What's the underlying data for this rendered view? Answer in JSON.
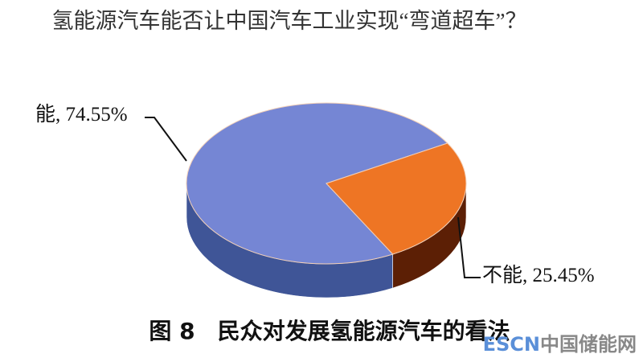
{
  "chart_data": {
    "type": "pie",
    "title": "氢能源汽车能否让中国汽车工业实现“弯道超车”？",
    "slices": [
      {
        "label": "能",
        "value": 74.55,
        "display": "能, 74.55%",
        "color": "#7586d4",
        "side_color": "#3f5597"
      },
      {
        "label": "不能",
        "value": 25.45,
        "display": "不能, 25.45%",
        "color": "#ee7524",
        "side_color": "#5c1f05"
      }
    ],
    "style": "3d"
  },
  "caption": "图 8　民众对发展氢能源汽车的看法",
  "watermark": "ESCN中国储能网"
}
